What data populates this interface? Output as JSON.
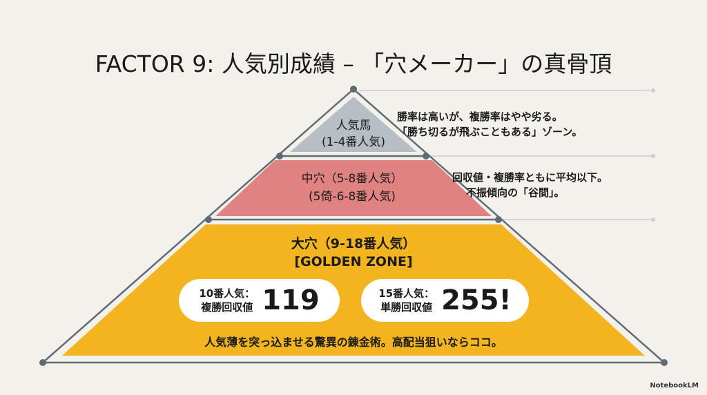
{
  "title": "FACTOR 9: 人気別成績 – 「穴メーカー」の真骨頂",
  "tiers": [
    {
      "label_line1": "人気馬",
      "label_line2": "(1-4番人気)",
      "note_line1": "勝率は高いが、複勝率はやや劣る。",
      "note_line2": "「勝ち切るが飛ぶこともある」ゾーン。",
      "color": "#b8bfc4"
    },
    {
      "label_line1": "中穴（5-8番人気）",
      "label_line2": "(5倚-6-8番人気)",
      "note_line1": "回収値・複勝率ともに平均以下。",
      "note_line2": "不振傾向の「谷間」。",
      "color": "#e08282"
    },
    {
      "label_line1": "大穴（9-18番人気）",
      "label_line2": "[GOLDEN ZONE]",
      "color": "#f3b51f",
      "stats": [
        {
          "label_line1": "10番人気：",
          "label_line2": "複勝回収値",
          "value": "119"
        },
        {
          "label_line1": "15番人気：",
          "label_line2": "単勝回収値",
          "value": "255!"
        }
      ],
      "tagline": "人気薄を突っ込ませる驚異の錬金術。高配当狙いならココ。"
    }
  ],
  "watermark": "NotebookLM"
}
